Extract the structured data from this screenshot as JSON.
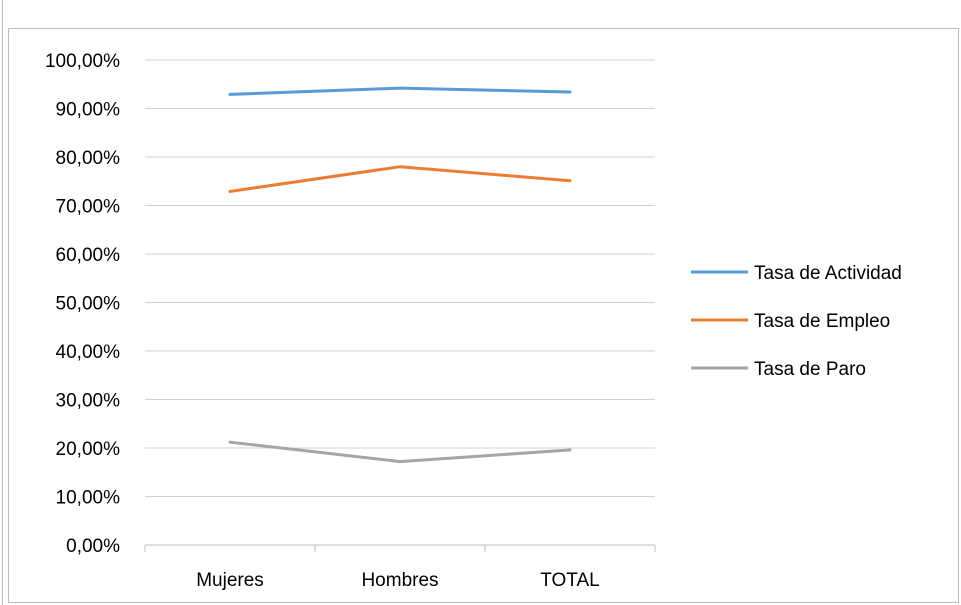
{
  "chart_data": {
    "type": "line",
    "categories": [
      "Mujeres",
      "Hombres",
      "TOTAL"
    ],
    "series": [
      {
        "name": "Tasa de Actividad",
        "values": [
          92.9,
          94.2,
          93.4
        ],
        "color": "#5b9bd5"
      },
      {
        "name": "Tasa de Empleo",
        "values": [
          72.9,
          78.0,
          75.1
        ],
        "color": "#ed7d31"
      },
      {
        "name": "Tasa de Paro",
        "values": [
          21.2,
          17.2,
          19.6
        ],
        "color": "#a5a5a5"
      }
    ],
    "ylim": [
      0,
      100
    ],
    "yticks": [
      "0,00%",
      "10,00%",
      "20,00%",
      "30,00%",
      "40,00%",
      "50,00%",
      "60,00%",
      "70,00%",
      "80,00%",
      "90,00%",
      "100,00%"
    ],
    "grid": true,
    "legend_position": "right"
  }
}
